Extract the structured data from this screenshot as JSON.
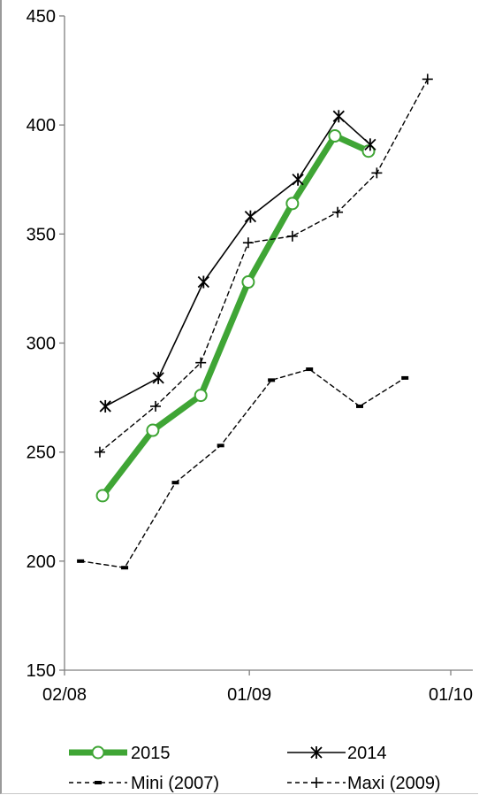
{
  "chart_data": {
    "type": "line",
    "title": "",
    "xlabel": "",
    "ylabel": "",
    "ylim": [
      150,
      450
    ],
    "yticks": [
      150,
      200,
      250,
      300,
      350,
      400,
      450
    ],
    "xlim": [
      "2008-02-01",
      "2010-02-10"
    ],
    "xticks": [
      {
        "date": "2008-02-01",
        "label": "02/08"
      },
      {
        "date": "2009-01-01",
        "label": "01/09"
      },
      {
        "date": "2010-01-01",
        "label": "01/10"
      }
    ],
    "grid": false,
    "legend_position": "bottom",
    "series": [
      {
        "name": "2015",
        "color": "#3fa535",
        "style": "thick-solid",
        "marker": "open-circle",
        "points": [
          {
            "x": "2008-04-10",
            "y": 230
          },
          {
            "x": "2008-07-10",
            "y": 260
          },
          {
            "x": "2008-10-05",
            "y": 276
          },
          {
            "x": "2008-12-30",
            "y": 328
          },
          {
            "x": "2009-03-20",
            "y": 364
          },
          {
            "x": "2009-06-05",
            "y": 395
          },
          {
            "x": "2009-08-05",
            "y": 388
          }
        ]
      },
      {
        "name": "2014",
        "color": "#000000",
        "style": "solid",
        "marker": "star",
        "points": [
          {
            "x": "2008-04-15",
            "y": 271
          },
          {
            "x": "2008-07-20",
            "y": 284
          },
          {
            "x": "2008-10-10",
            "y": 328
          },
          {
            "x": "2009-01-03",
            "y": 358
          },
          {
            "x": "2009-03-30",
            "y": 375
          },
          {
            "x": "2009-06-12",
            "y": 404
          },
          {
            "x": "2009-08-08",
            "y": 391
          }
        ]
      },
      {
        "name": "Mini (2007)",
        "color": "#000000",
        "style": "dashed",
        "marker": "dash",
        "points": [
          {
            "x": "2008-03-01",
            "y": 200
          },
          {
            "x": "2008-05-20",
            "y": 197
          },
          {
            "x": "2008-08-20",
            "y": 236
          },
          {
            "x": "2008-11-10",
            "y": 253
          },
          {
            "x": "2009-02-10",
            "y": 283
          },
          {
            "x": "2009-04-20",
            "y": 288
          },
          {
            "x": "2009-07-20",
            "y": 271
          },
          {
            "x": "2009-10-10",
            "y": 284
          }
        ]
      },
      {
        "name": "Maxi (2009)",
        "color": "#000000",
        "style": "dashed",
        "marker": "plus",
        "points": [
          {
            "x": "2008-04-05",
            "y": 250
          },
          {
            "x": "2008-07-15",
            "y": 271
          },
          {
            "x": "2008-10-05",
            "y": 291
          },
          {
            "x": "2008-12-30",
            "y": 346
          },
          {
            "x": "2009-03-20",
            "y": 349
          },
          {
            "x": "2009-06-10",
            "y": 360
          },
          {
            "x": "2009-08-20",
            "y": 378
          },
          {
            "x": "2009-11-20",
            "y": 421
          }
        ]
      }
    ]
  }
}
